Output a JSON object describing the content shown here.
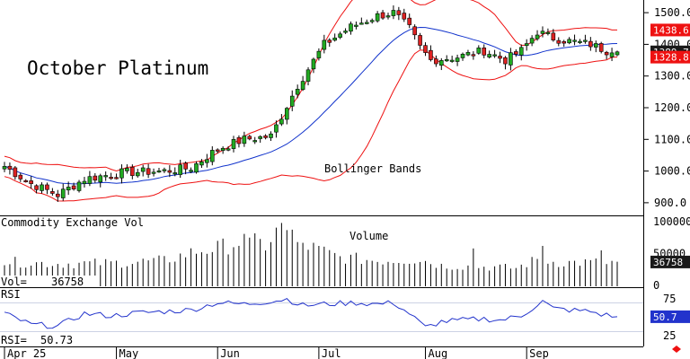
{
  "chart_data": {
    "type": "candlestick",
    "title": "October Platinum",
    "annotation": "Bollinger Bands",
    "price_axis": {
      "min": 860,
      "max": 1540,
      "ticks": [
        1500,
        1400,
        1300,
        1200,
        1100,
        1000,
        900
      ],
      "tick_labels": [
        "1500.0",
        "1400.0",
        "1300.0",
        "1200.0",
        "1100.0",
        "1000.0",
        "900.0"
      ]
    },
    "months": [
      "Apr 25",
      "May",
      "Jun",
      "Jul",
      "Aug",
      "Sep"
    ],
    "month_start_index": [
      0,
      21,
      40,
      59,
      79,
      98
    ],
    "last_values": {
      "upper_band": "1438.6",
      "close": "1389.7",
      "lower_band": "1328.8"
    },
    "colors": {
      "up": "#22aa22",
      "down": "#dd2222",
      "band": "#ee1111",
      "mid": "#1133cc",
      "tag_red": "#ee1111",
      "tag_dark": "#1a1a1a",
      "volume": "#000000",
      "rsi": "#2233cc"
    },
    "anchors_close": [
      [
        0,
        1015
      ],
      [
        5,
        960
      ],
      [
        10,
        925
      ],
      [
        15,
        975
      ],
      [
        22,
        995
      ],
      [
        30,
        1000
      ],
      [
        35,
        1010
      ],
      [
        40,
        1070
      ],
      [
        45,
        1100
      ],
      [
        50,
        1110
      ],
      [
        55,
        1270
      ],
      [
        60,
        1400
      ],
      [
        65,
        1455
      ],
      [
        70,
        1490
      ],
      [
        73,
        1500
      ],
      [
        76,
        1450
      ],
      [
        78,
        1390
      ],
      [
        80,
        1350
      ],
      [
        85,
        1360
      ],
      [
        90,
        1380
      ],
      [
        94,
        1350
      ],
      [
        97,
        1380
      ],
      [
        100,
        1440
      ],
      [
        103,
        1420
      ],
      [
        106,
        1410
      ],
      [
        110,
        1400
      ],
      [
        113,
        1380
      ],
      [
        115,
        1389.7
      ]
    ],
    "volume": {
      "label": "Commodity Exchange Vol",
      "sublabel": "Volume",
      "readout_label": "Vol=",
      "readout_value": "36758",
      "axis_max": 100000,
      "tick_labels": [
        "100000",
        "50000",
        "0"
      ],
      "last": "36758",
      "anchors": [
        [
          0,
          38000
        ],
        [
          10,
          35000
        ],
        [
          20,
          36000
        ],
        [
          30,
          40000
        ],
        [
          36,
          55000
        ],
        [
          40,
          60000
        ],
        [
          45,
          72000
        ],
        [
          49,
          65000
        ],
        [
          52,
          95000
        ],
        [
          55,
          70000
        ],
        [
          58,
          60000
        ],
        [
          63,
          45000
        ],
        [
          70,
          40000
        ],
        [
          78,
          42000
        ],
        [
          82,
          32000
        ],
        [
          90,
          30000
        ],
        [
          96,
          28000
        ],
        [
          100,
          42000
        ],
        [
          104,
          37000
        ],
        [
          110,
          37000
        ],
        [
          115,
          36758
        ]
      ],
      "spikes": [
        [
          46,
          75000
        ],
        [
          52,
          98000
        ],
        [
          55,
          68000
        ],
        [
          88,
          58000
        ],
        [
          101,
          62000
        ],
        [
          112,
          55000
        ]
      ]
    },
    "rsi": {
      "label": "RSI",
      "readout_label": "RSI=",
      "readout_value": "50.73",
      "axis_min": 10,
      "axis_max": 90,
      "levels": [
        70,
        30
      ],
      "tick_labels": [
        "75",
        "50",
        "25"
      ],
      "last": "50.7",
      "anchors": [
        [
          0,
          55
        ],
        [
          5,
          40
        ],
        [
          10,
          38
        ],
        [
          15,
          55
        ],
        [
          20,
          52
        ],
        [
          25,
          56
        ],
        [
          30,
          58
        ],
        [
          35,
          60
        ],
        [
          40,
          70
        ],
        [
          45,
          68
        ],
        [
          50,
          72
        ],
        [
          53,
          75
        ],
        [
          56,
          66
        ],
        [
          60,
          68
        ],
        [
          66,
          70
        ],
        [
          70,
          68
        ],
        [
          73,
          70
        ],
        [
          76,
          55
        ],
        [
          79,
          36
        ],
        [
          82,
          44
        ],
        [
          86,
          46
        ],
        [
          90,
          48
        ],
        [
          93,
          46
        ],
        [
          97,
          52
        ],
        [
          101,
          72
        ],
        [
          103,
          62
        ],
        [
          106,
          60
        ],
        [
          110,
          58
        ],
        [
          112,
          54
        ],
        [
          115,
          50.73
        ]
      ]
    }
  }
}
